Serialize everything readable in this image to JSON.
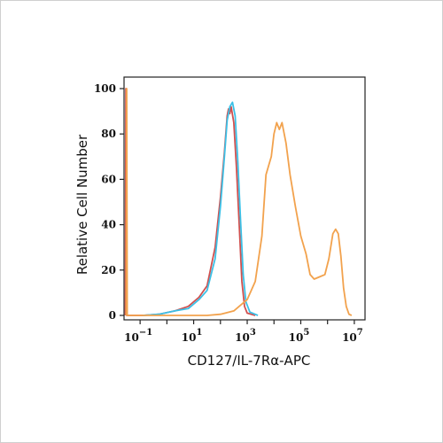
{
  "chart_data": {
    "type": "line",
    "xlabel": "CD127/IL-7Rα-APC",
    "ylabel": "Relative Cell Number",
    "x_scale": "log10",
    "xlim_exponents": [
      -1.6,
      7.4
    ],
    "ylim": [
      0,
      100
    ],
    "y_ticks": [
      "0",
      "20",
      "40",
      "60",
      "80",
      "100"
    ],
    "x_ticks": [
      {
        "exp": -1,
        "base": "10",
        "sup": "−1"
      },
      {
        "exp": 1,
        "base": "10",
        "sup": "1"
      },
      {
        "exp": 3,
        "base": "10",
        "sup": "3"
      },
      {
        "exp": 5,
        "base": "10",
        "sup": "5"
      },
      {
        "exp": 7,
        "base": "10",
        "sup": "7"
      }
    ],
    "grid": false,
    "series": [
      {
        "color": "#d0504f",
        "points": [
          [
            -1.55,
            0
          ],
          [
            -1.53,
            100
          ],
          [
            -1.5,
            0
          ],
          [
            -0.9,
            0
          ],
          [
            -0.3,
            0.5
          ],
          [
            0.3,
            2
          ],
          [
            0.8,
            4
          ],
          [
            1.2,
            8
          ],
          [
            1.5,
            13
          ],
          [
            1.8,
            30
          ],
          [
            2.0,
            52
          ],
          [
            2.15,
            72
          ],
          [
            2.25,
            88
          ],
          [
            2.3,
            91
          ],
          [
            2.35,
            89
          ],
          [
            2.4,
            92
          ],
          [
            2.5,
            85
          ],
          [
            2.6,
            65
          ],
          [
            2.7,
            40
          ],
          [
            2.8,
            15
          ],
          [
            2.9,
            4
          ],
          [
            3.0,
            1
          ],
          [
            3.3,
            0
          ]
        ]
      },
      {
        "color": "#3cc0e6",
        "points": [
          [
            -0.9,
            0
          ],
          [
            -0.3,
            0.5
          ],
          [
            0.3,
            2
          ],
          [
            0.8,
            3
          ],
          [
            1.2,
            7
          ],
          [
            1.5,
            11
          ],
          [
            1.8,
            25
          ],
          [
            2.0,
            48
          ],
          [
            2.15,
            70
          ],
          [
            2.25,
            86
          ],
          [
            2.35,
            92
          ],
          [
            2.45,
            94
          ],
          [
            2.55,
            88
          ],
          [
            2.65,
            68
          ],
          [
            2.75,
            42
          ],
          [
            2.85,
            18
          ],
          [
            2.95,
            6
          ],
          [
            3.1,
            1.5
          ],
          [
            3.4,
            0
          ]
        ]
      },
      {
        "color": "#f2a24d",
        "points": [
          [
            -1.52,
            0
          ],
          [
            -1.5,
            100
          ],
          [
            -1.48,
            0
          ],
          [
            1.5,
            0
          ],
          [
            2.0,
            0.5
          ],
          [
            2.5,
            2
          ],
          [
            3.0,
            7
          ],
          [
            3.3,
            15
          ],
          [
            3.55,
            35
          ],
          [
            3.7,
            62
          ],
          [
            3.8,
            66
          ],
          [
            3.9,
            70
          ],
          [
            4.0,
            80
          ],
          [
            4.1,
            85
          ],
          [
            4.2,
            82
          ],
          [
            4.3,
            85
          ],
          [
            4.45,
            76
          ],
          [
            4.6,
            62
          ],
          [
            4.8,
            48
          ],
          [
            5.0,
            35
          ],
          [
            5.2,
            27
          ],
          [
            5.35,
            18
          ],
          [
            5.5,
            16
          ],
          [
            5.7,
            17
          ],
          [
            5.9,
            18
          ],
          [
            6.05,
            25
          ],
          [
            6.2,
            36
          ],
          [
            6.3,
            38
          ],
          [
            6.4,
            36
          ],
          [
            6.5,
            26
          ],
          [
            6.6,
            12
          ],
          [
            6.7,
            4
          ],
          [
            6.8,
            0.5
          ],
          [
            6.9,
            0
          ]
        ]
      }
    ]
  }
}
